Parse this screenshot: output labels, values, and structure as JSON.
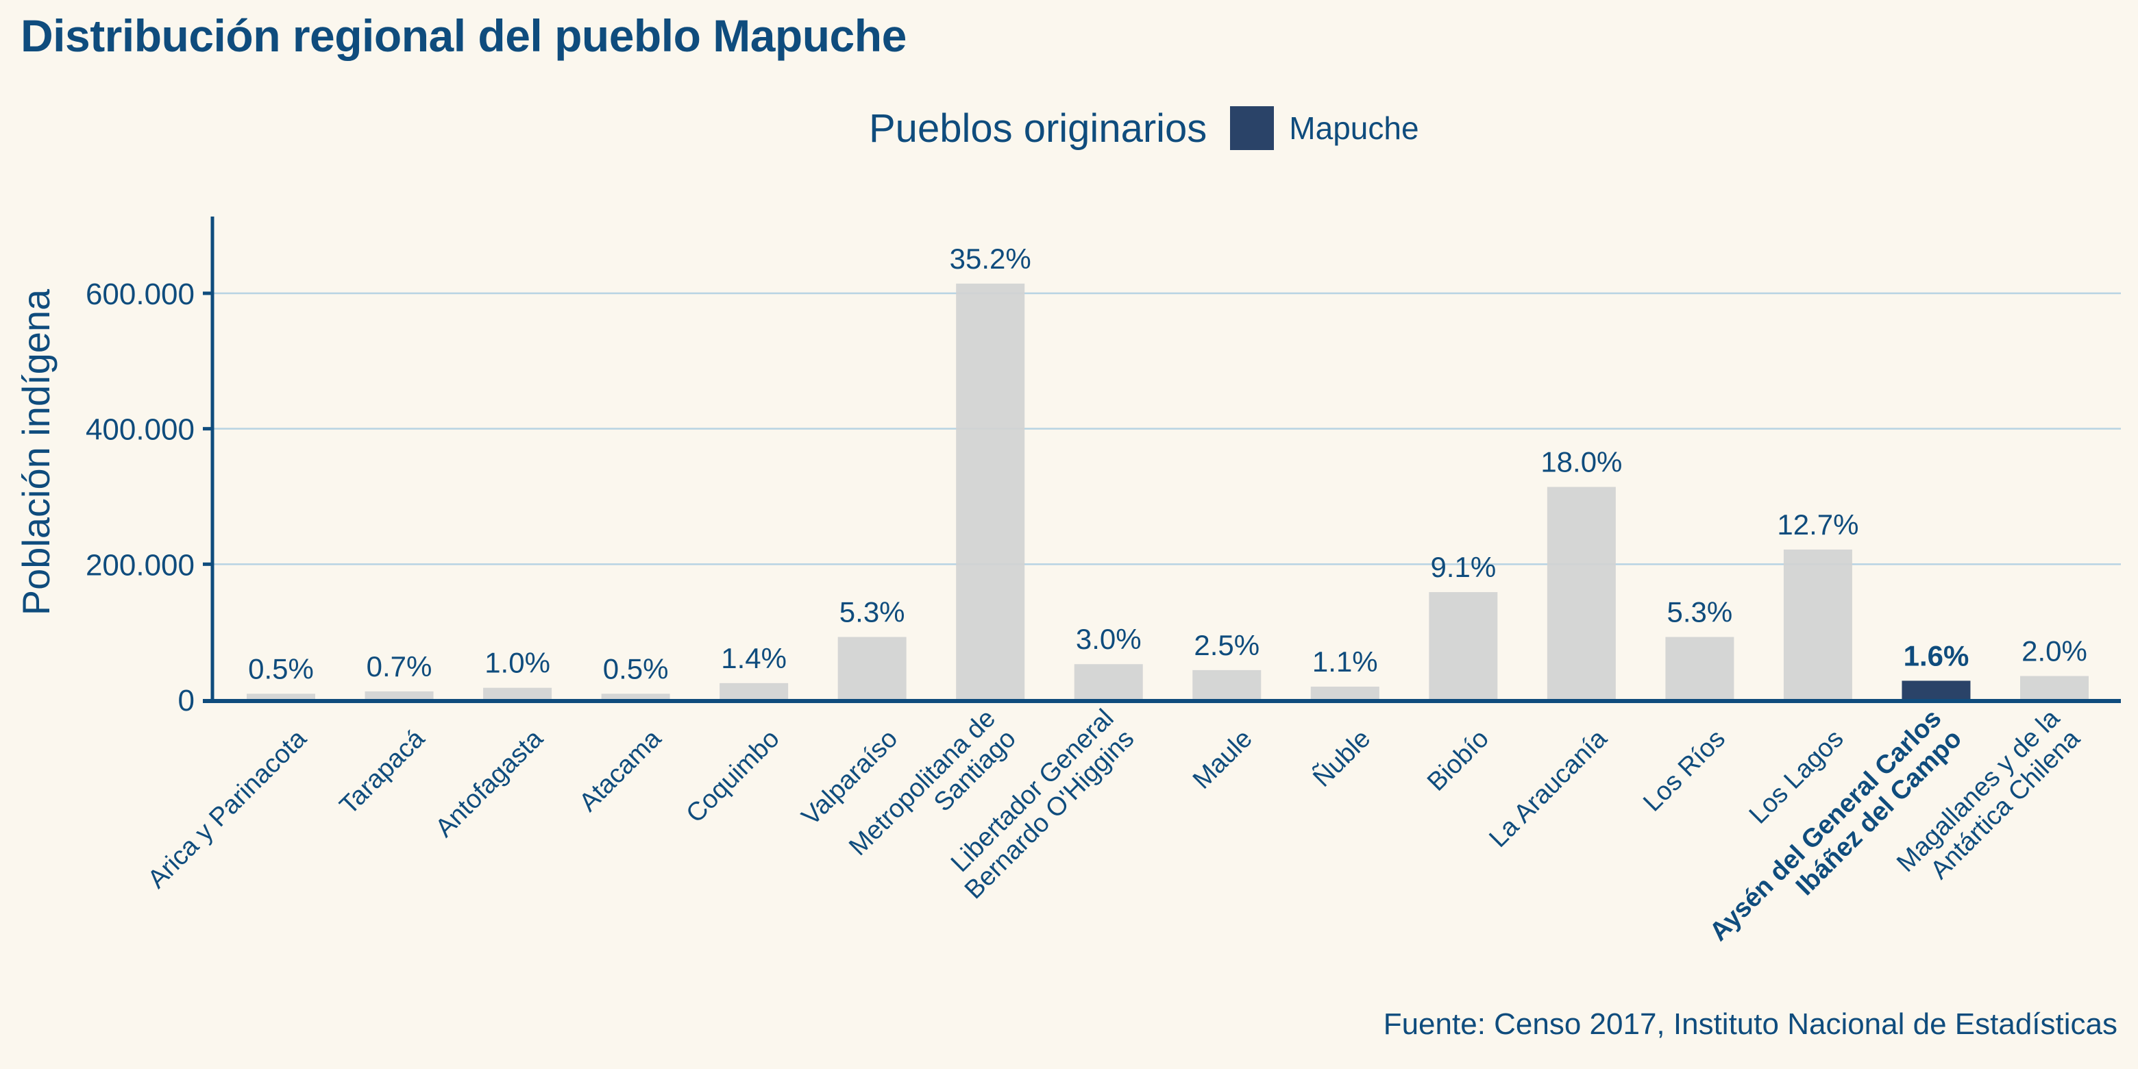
{
  "title": "Distribución regional del pueblo Mapuche",
  "legend": {
    "title": "Pueblos originarios",
    "entries": [
      {
        "label": "Mapuche",
        "color": "#2a4368"
      }
    ]
  },
  "source": "Fuente: Censo 2017, Instituto Nacional de Estadísticas",
  "colors": {
    "text": "#0f4c7d",
    "bar_default": "#d1d3d3",
    "bar_highlight": "#2a4368",
    "gridline": "#b7d3e3",
    "axis": "#0f4c7d",
    "background": "#fbf7ee"
  },
  "chart_data": {
    "type": "bar",
    "title": "Distribución regional del pueblo Mapuche",
    "xlabel": "",
    "ylabel": "Población indígena",
    "ylim": [
      0,
      720000
    ],
    "yticks": [
      0,
      200000,
      400000,
      600000
    ],
    "ytick_labels": [
      "0",
      "200.000",
      "400.000",
      "600.000"
    ],
    "grid": true,
    "legend_position": "top-center",
    "categories": [
      "Arica y Parinacota",
      "Tarapacá",
      "Antofagasta",
      "Atacama",
      "Coquimbo",
      "Valparaíso",
      "Metropolitana de Santiago",
      "Libertador General Bernardo O'Higgins",
      "Maule",
      "Ñuble",
      "Biobío",
      "La Araucanía",
      "Los Ríos",
      "Los Lagos",
      "Aysén del General Carlos Ibáñez del Campo",
      "Magallanes y de la Antártica Chilena"
    ],
    "category_label_lines": [
      [
        "Arica y Parinacota"
      ],
      [
        "Tarapacá"
      ],
      [
        "Antofagasta"
      ],
      [
        "Atacama"
      ],
      [
        "Coquimbo"
      ],
      [
        "Valparaíso"
      ],
      [
        "Metropolitana de",
        "Santiago"
      ],
      [
        "Libertador General",
        "Bernardo O'Higgins"
      ],
      [
        "Maule"
      ],
      [
        "Ñuble"
      ],
      [
        "Biobío"
      ],
      [
        "La Araucanía"
      ],
      [
        "Los Ríos"
      ],
      [
        "Los Lagos"
      ],
      [
        "Aysén del General Carlos",
        "Ibáñez del Campo"
      ],
      [
        "Magallanes y de la",
        "Antártica Chilena"
      ]
    ],
    "series": [
      {
        "name": "Mapuche",
        "values": [
          8700,
          12200,
          17500,
          8700,
          24400,
          92500,
          614300,
          52400,
          43600,
          19200,
          158800,
          314100,
          92500,
          221600,
          27900,
          34900
        ],
        "labels": [
          "0.5%",
          "0.7%",
          "1.0%",
          "0.5%",
          "1.4%",
          "5.3%",
          "35.2%",
          "3.0%",
          "2.5%",
          "1.1%",
          "9.1%",
          "18.0%",
          "5.3%",
          "12.7%",
          "1.6%",
          "2.0%"
        ]
      }
    ],
    "highlight_category": "Aysén del General Carlos Ibáñez del Campo"
  }
}
